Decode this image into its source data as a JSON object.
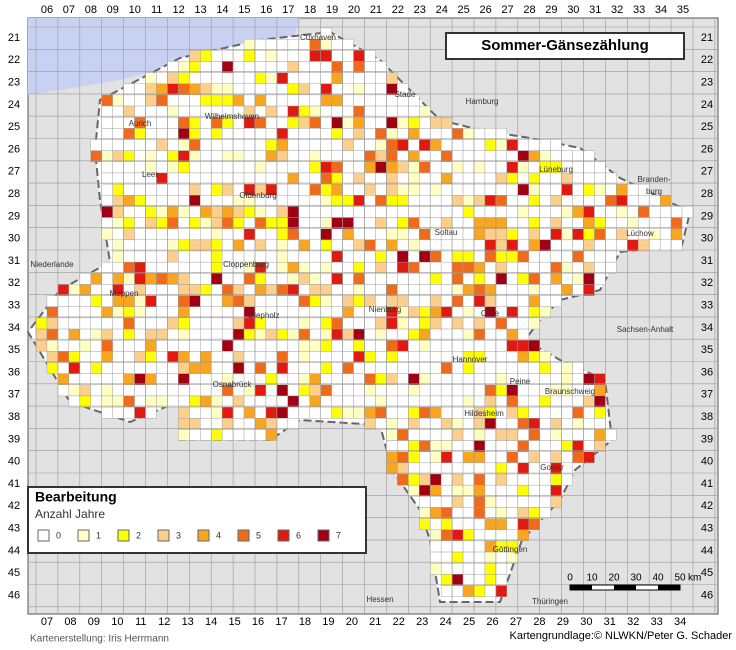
{
  "title": "Sommer-Gänsezählung",
  "top_columns": [
    "06",
    "07",
    "08",
    "09",
    "10",
    "11",
    "12",
    "13",
    "14",
    "15",
    "16",
    "17",
    "18",
    "19",
    "20",
    "21",
    "22",
    "23",
    "24",
    "25",
    "26",
    "27",
    "28",
    "29",
    "30",
    "31",
    "32",
    "33",
    "34",
    "35"
  ],
  "bottom_columns": [
    "07",
    "08",
    "09",
    "10",
    "11",
    "12",
    "13",
    "14",
    "15",
    "16",
    "17",
    "18",
    "19",
    "20",
    "21",
    "22",
    "23",
    "24",
    "25",
    "26",
    "27",
    "28",
    "29",
    "30",
    "31",
    "32",
    "33",
    "34"
  ],
  "rows": [
    "21",
    "22",
    "23",
    "24",
    "25",
    "26",
    "27",
    "28",
    "29",
    "30",
    "31",
    "32",
    "33",
    "34",
    "35",
    "36",
    "37",
    "38",
    "39",
    "40",
    "41",
    "42",
    "43",
    "44",
    "45",
    "46"
  ],
  "legend": {
    "title": "Bearbeitung",
    "subtitle": "Anzahl Jahre",
    "classes": [
      {
        "label": "0",
        "color": "#ffffff"
      },
      {
        "label": "1",
        "color": "#ffffc4"
      },
      {
        "label": "2",
        "color": "#ffff00"
      },
      {
        "label": "3",
        "color": "#fccf8c"
      },
      {
        "label": "4",
        "color": "#f8a520"
      },
      {
        "label": "5",
        "color": "#f06a1c"
      },
      {
        "label": "6",
        "color": "#e01a10"
      },
      {
        "label": "7",
        "color": "#a00012"
      }
    ]
  },
  "places": [
    {
      "name": "Cuxhaven"
    },
    {
      "name": "Hamburg"
    },
    {
      "name": "Stade"
    },
    {
      "name": "Aurich"
    },
    {
      "name": "Wilhelmshaven"
    },
    {
      "name": "Leer"
    },
    {
      "name": "Oldenburg"
    },
    {
      "name": "Lüneburg"
    },
    {
      "name": "Branden-"
    },
    {
      "name": "burg"
    },
    {
      "name": "Lüchow"
    },
    {
      "name": "Soltau"
    },
    {
      "name": "Niederlande"
    },
    {
      "name": "Cloppenburg"
    },
    {
      "name": "Meppen"
    },
    {
      "name": "Nienburg"
    },
    {
      "name": "Diepholz"
    },
    {
      "name": "Celle"
    },
    {
      "name": "Sachsen-Anhalt"
    },
    {
      "name": "Hannover"
    },
    {
      "name": "Peine"
    },
    {
      "name": "Braunschweig"
    },
    {
      "name": "Osnabrück"
    },
    {
      "name": "Hildesheim"
    },
    {
      "name": "Goslar"
    },
    {
      "name": "Göttingen"
    },
    {
      "name": "Hessen"
    },
    {
      "name": "Thüringen"
    }
  ],
  "scale": {
    "ticks": [
      0,
      10,
      20,
      30,
      40,
      50
    ],
    "unit": "km"
  },
  "credits": {
    "left": "Kartenerstellung: Iris Herrmann",
    "right": "Kartengrundlage:© NLWKN/Peter G. Schader"
  }
}
